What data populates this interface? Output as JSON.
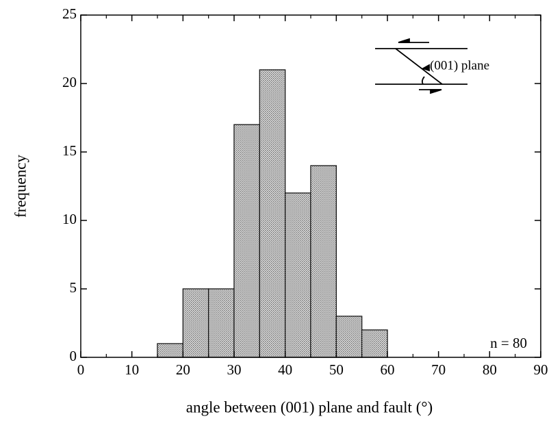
{
  "chart_data": {
    "type": "histogram",
    "xlabel": "angle between (001) plane and fault (°)",
    "ylabel": "frequency",
    "bins": [
      15,
      20,
      25,
      30,
      35,
      40,
      45,
      50,
      55,
      60
    ],
    "counts": [
      1,
      5,
      5,
      17,
      21,
      12,
      14,
      3,
      2
    ],
    "color": "#bdbdbd",
    "xlim": [
      0,
      90
    ],
    "xticks": [
      0,
      10,
      20,
      30,
      40,
      50,
      60,
      70,
      80,
      90
    ],
    "x_minor_ticks": [
      5,
      15,
      25,
      35,
      45,
      55,
      65,
      75,
      85
    ],
    "ylim": [
      0,
      25
    ],
    "yticks": [
      0,
      5,
      10,
      15,
      20,
      25
    ],
    "annotations": [
      "n = 80",
      "(001) plane"
    ]
  }
}
